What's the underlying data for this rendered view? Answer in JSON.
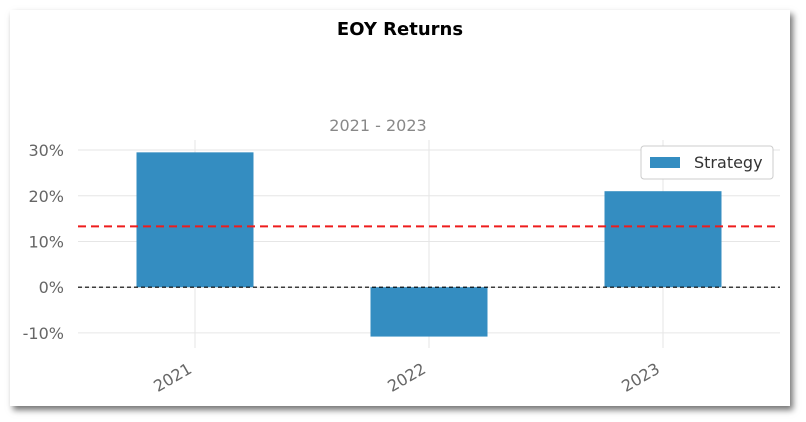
{
  "chart_data": {
    "type": "bar",
    "title": "EOY Returns",
    "subtitle": "2021 - 2023",
    "xlabel": "",
    "ylabel": "",
    "categories": [
      "2021",
      "2022",
      "2023"
    ],
    "series": [
      {
        "name": "Strategy",
        "values": [
          29.5,
          -10.8,
          21.0
        ],
        "color": "#348dc1"
      }
    ],
    "y_ticks": [
      -10,
      0,
      10,
      20,
      30
    ],
    "y_tick_labels": [
      "-10%",
      "0%",
      "10%",
      "20%",
      "30%"
    ],
    "ylim": [
      -13.3,
      32.2
    ],
    "mean_line": {
      "value": 13.3,
      "color": "#ee1c1c",
      "style": "dashed"
    },
    "zero_line": {
      "value": 0,
      "color": "#000000",
      "style": "dashed"
    },
    "grid": true,
    "legend_position": "top-right"
  }
}
